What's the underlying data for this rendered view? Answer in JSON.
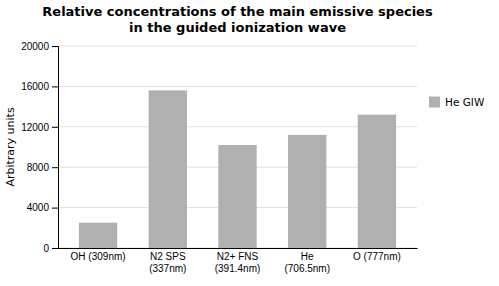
{
  "chart_data": {
    "type": "bar",
    "title": "Relative concentrations of the main emissive species\nin the guided ionization wave",
    "ylabel": "Arbitrary units",
    "categories": [
      "OH (309nm)",
      "N2 SPS\n(337nm)",
      "N2+ FNS\n(391.4nm)",
      "He\n(706.5nm)",
      "O (777nm)"
    ],
    "series": [
      {
        "name": "He GIW",
        "color": "#b0b0b0",
        "values": [
          2500,
          15600,
          10200,
          11200,
          13200
        ]
      }
    ],
    "ylim": [
      0,
      20000
    ],
    "yticks": [
      0,
      4000,
      8000,
      12000,
      16000,
      20000
    ],
    "grid": true,
    "legend": "right"
  }
}
